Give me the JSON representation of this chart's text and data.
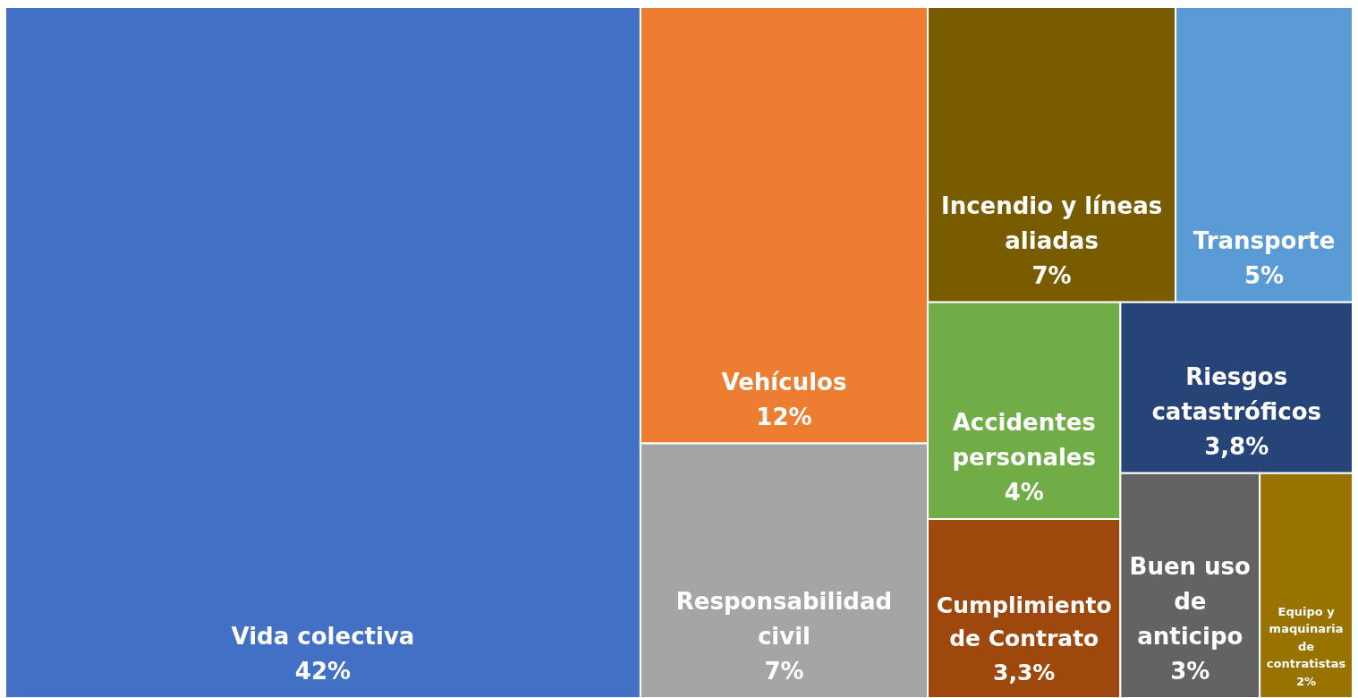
{
  "chart_data": {
    "type": "other",
    "categories": [
      "Vida colectiva",
      "Vehículos",
      "Responsabilidad civil",
      "Incendio y líneas aliadas",
      "Transporte",
      "Accidentes personales",
      "Cumplimiento de Contrato",
      "Riesgos catastróficos",
      "Buen uso de anticipo",
      "Equipo y maquinaria de contratistas"
    ],
    "values": [
      42,
      12,
      7,
      7,
      5,
      4,
      3.3,
      3.8,
      3,
      2
    ],
    "value_labels": [
      "42%",
      "12%",
      "7%",
      "7%",
      "5%",
      "4%",
      "3,3%",
      "3,8%",
      "3%",
      "2%"
    ],
    "colors": [
      "#4270c4",
      "#ed7d31",
      "#a5a5a5",
      "#7a5c00",
      "#5b9bd5",
      "#70ad47",
      "#9e480e",
      "#264478",
      "#636363",
      "#997300"
    ]
  }
}
